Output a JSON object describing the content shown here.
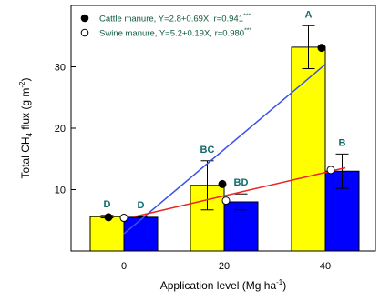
{
  "chart_data": {
    "type": "bar",
    "categories": [
      "0",
      "20",
      "40"
    ],
    "xlabel_main": "Application level (Mg ha",
    "xlabel_sup": "-1",
    "xlabel_close": ")",
    "ylabel_pre": "Total CH",
    "ylabel_sub": "4",
    "ylabel_mid": " flux (g m",
    "ylabel_sup": "-2",
    "ylabel_close": ")",
    "ylim": [
      0,
      40
    ],
    "yticks": [
      "10",
      "20",
      "30"
    ],
    "series": [
      {
        "name": "Cattle manure",
        "color": "#ffff00",
        "values": [
          5.6,
          10.7,
          33.2
        ],
        "errors": [
          0.2,
          4.0,
          3.5
        ],
        "letters": [
          "D",
          "BC",
          "A"
        ],
        "observed": [
          5.5,
          10.9,
          33.1
        ]
      },
      {
        "name": "Swine manure",
        "color": "#0000ff",
        "values": [
          5.5,
          8.0,
          13.0
        ],
        "errors": [
          0.1,
          1.3,
          2.8
        ],
        "letters": [
          "D",
          "BD",
          "B"
        ],
        "observed": [
          5.4,
          8.2,
          13.2
        ]
      }
    ],
    "regressions": [
      {
        "label": "Cattle manure, Y=2.8+0.69X, r=0.941",
        "stars": "***",
        "intercept": 2.8,
        "slope": 0.69,
        "color": "#3a52e6",
        "marker": "filled-circle"
      },
      {
        "label": "Swine manure, Y=5.2+0.19X, r=0.980",
        "stars": "***",
        "intercept": 5.2,
        "slope": 0.19,
        "color": "#ee2222",
        "marker": "open-circle"
      }
    ],
    "legend_position": "top-left",
    "grid": false
  }
}
